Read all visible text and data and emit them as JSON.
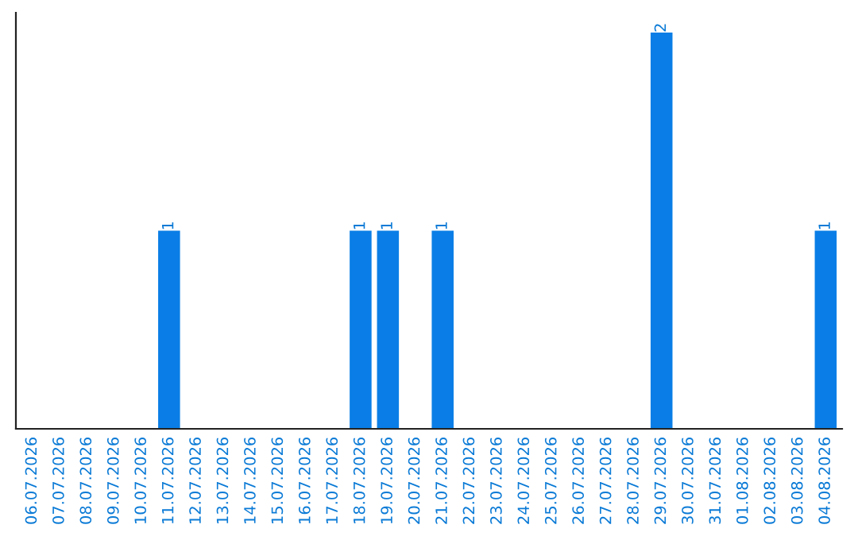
{
  "chart_data": {
    "type": "bar",
    "categories": [
      "06.07.2026",
      "07.07.2026",
      "08.07.2026",
      "09.07.2026",
      "10.07.2026",
      "11.07.2026",
      "12.07.2026",
      "13.07.2026",
      "14.07.2026",
      "15.07.2026",
      "16.07.2026",
      "17.07.2026",
      "18.07.2026",
      "19.07.2026",
      "20.07.2026",
      "21.07.2026",
      "22.07.2026",
      "23.07.2026",
      "24.07.2026",
      "25.07.2026",
      "26.07.2026",
      "27.07.2026",
      "28.07.2026",
      "29.07.2026",
      "30.07.2026",
      "31.07.2026",
      "01.08.2026",
      "02.08.2026",
      "03.08.2026",
      "04.08.2026"
    ],
    "values": [
      0,
      0,
      0,
      0,
      0,
      1,
      0,
      0,
      0,
      0,
      0,
      0,
      1,
      1,
      0,
      1,
      0,
      0,
      0,
      0,
      0,
      0,
      0,
      2,
      0,
      0,
      0,
      0,
      0,
      1
    ],
    "value_labels": [
      null,
      null,
      null,
      null,
      null,
      "1",
      null,
      null,
      null,
      null,
      null,
      null,
      "1",
      "1",
      null,
      "1",
      null,
      null,
      null,
      null,
      null,
      null,
      null,
      "2",
      null,
      null,
      null,
      null,
      null,
      "1"
    ],
    "color": "#0a7ee6",
    "tick_labels": "x",
    "grid": false,
    "legend": false
  }
}
